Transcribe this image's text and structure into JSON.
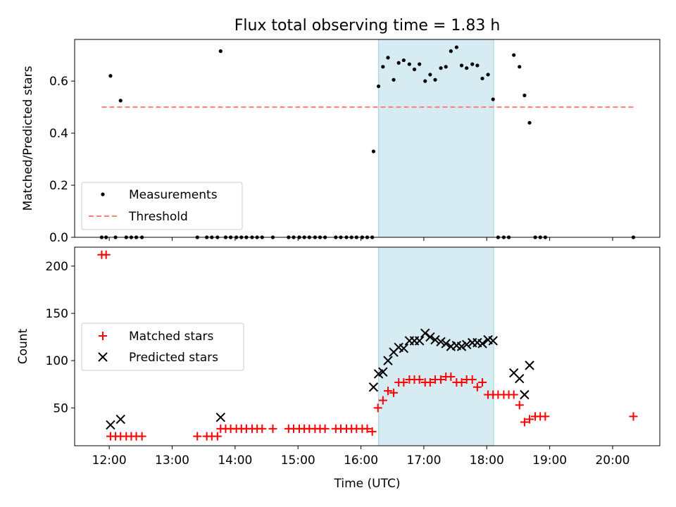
{
  "chart_data": [
    {
      "type": "scatter",
      "title": "Flux total observing time = 1.83 h",
      "xlabel": "",
      "ylabel": "Matched/Predicted stars",
      "xlim": [
        11.45,
        20.75
      ],
      "ylim": [
        0,
        0.76
      ],
      "y_ticks": [
        0.0,
        0.2,
        0.4,
        0.6
      ],
      "y_tick_labels": [
        "0.0",
        "0.2",
        "0.4",
        "0.6"
      ],
      "highlight_span": {
        "x0": 16.28,
        "x1": 18.11,
        "color": "#add8e6"
      },
      "legend": {
        "position": "lower-left",
        "entries": [
          "Measurements",
          "Threshold"
        ]
      },
      "series": [
        {
          "name": "Measurements",
          "marker": "dot",
          "color": "#000000",
          "x": [
            11.88,
            11.95,
            12.02,
            12.1,
            12.18,
            12.27,
            12.35,
            12.43,
            12.52,
            13.4,
            13.55,
            13.63,
            13.72,
            13.77,
            13.85,
            13.93,
            14.02,
            14.1,
            14.18,
            14.27,
            14.35,
            14.43,
            14.6,
            14.85,
            14.93,
            15.02,
            15.1,
            15.18,
            15.27,
            15.35,
            15.43,
            15.6,
            15.68,
            15.77,
            15.85,
            15.93,
            16.02,
            16.1,
            16.02,
            16.18,
            16.2,
            16.28,
            16.35,
            16.43,
            16.52,
            16.6,
            16.68,
            16.77,
            16.85,
            16.93,
            17.02,
            17.1,
            17.18,
            17.27,
            17.35,
            17.43,
            17.52,
            17.6,
            17.68,
            17.77,
            17.85,
            17.93,
            18.02,
            18.1,
            18.18,
            18.27,
            18.35,
            18.43,
            18.52,
            18.6,
            18.68,
            18.77,
            18.85,
            18.93,
            20.33
          ],
          "y": [
            0,
            0,
            0.62,
            0,
            0.525,
            0,
            0,
            0,
            0,
            0,
            0,
            0,
            0,
            0.715,
            0,
            0,
            0,
            0,
            0,
            0,
            0,
            0,
            0,
            0,
            0,
            0,
            0,
            0,
            0,
            0,
            0,
            0,
            0,
            0,
            0,
            0,
            0,
            0,
            0,
            0,
            0.33,
            0.58,
            0.655,
            0.69,
            0.605,
            0.67,
            0.68,
            0.665,
            0.645,
            0.665,
            0.6,
            0.625,
            0.605,
            0.65,
            0.655,
            0.715,
            0.73,
            0.66,
            0.65,
            0.665,
            0.66,
            0.61,
            0.625,
            0.53,
            0,
            0,
            0,
            0.7,
            0.655,
            0.545,
            0.44,
            0,
            0,
            0,
            0
          ]
        },
        {
          "name": "Threshold",
          "marker": "dashed-line",
          "color": "#ff7f7f",
          "x": [
            11.88,
            20.33
          ],
          "y": [
            0.5,
            0.5
          ]
        }
      ]
    },
    {
      "type": "scatter",
      "title": "",
      "xlabel": "Time (UTC)",
      "ylabel": "Count",
      "xlim": [
        11.45,
        20.75
      ],
      "ylim": [
        10,
        220
      ],
      "y_ticks": [
        50,
        100,
        150,
        200
      ],
      "y_tick_labels": [
        "50",
        "100",
        "150",
        "200"
      ],
      "x_ticks": [
        12,
        13,
        14,
        15,
        16,
        17,
        18,
        19,
        20
      ],
      "x_tick_labels": [
        "12:00",
        "13:00",
        "14:00",
        "15:00",
        "16:00",
        "17:00",
        "18:00",
        "19:00",
        "20:00"
      ],
      "highlight_span": {
        "x0": 16.28,
        "x1": 18.11,
        "color": "#add8e6"
      },
      "legend": {
        "position": "center-left",
        "entries": [
          "Matched stars",
          "Predicted stars"
        ]
      },
      "series": [
        {
          "name": "Matched stars",
          "marker": "plus",
          "color": "#ff0000",
          "x": [
            11.88,
            11.95,
            12.02,
            12.1,
            12.18,
            12.27,
            12.35,
            12.43,
            12.52,
            13.4,
            13.55,
            13.63,
            13.72,
            13.77,
            13.85,
            13.93,
            14.02,
            14.1,
            14.18,
            14.27,
            14.35,
            14.43,
            14.6,
            14.85,
            14.93,
            15.02,
            15.1,
            15.18,
            15.27,
            15.35,
            15.43,
            15.6,
            15.68,
            15.77,
            15.85,
            15.93,
            16.02,
            16.1,
            16.18,
            16.27,
            16.35,
            16.43,
            16.52,
            16.6,
            16.68,
            16.77,
            16.85,
            16.93,
            17.02,
            17.1,
            17.18,
            17.27,
            17.35,
            17.43,
            17.52,
            17.6,
            17.68,
            17.77,
            17.85,
            17.93,
            18.02,
            18.1,
            18.18,
            18.27,
            18.35,
            18.43,
            18.52,
            18.6,
            18.68,
            18.77,
            18.85,
            18.93,
            20.33
          ],
          "y": [
            212,
            212,
            20,
            20,
            20,
            20,
            20,
            20,
            20,
            20,
            20,
            20,
            20,
            28,
            28,
            28,
            28,
            28,
            28,
            28,
            28,
            28,
            28,
            28,
            28,
            28,
            28,
            28,
            28,
            28,
            28,
            28,
            28,
            28,
            28,
            28,
            28,
            28,
            25,
            50,
            58,
            68,
            66,
            77,
            77,
            80,
            80,
            80,
            77,
            77,
            80,
            80,
            83,
            83,
            77,
            77,
            80,
            80,
            72,
            77,
            64,
            64,
            64,
            64,
            64,
            64,
            53,
            35,
            38,
            41,
            41,
            41,
            41
          ]
        },
        {
          "name": "Predicted stars",
          "marker": "x",
          "color": "#000000",
          "x": [
            12.02,
            12.18,
            13.77,
            16.2,
            16.28,
            16.35,
            16.43,
            16.52,
            16.6,
            16.68,
            16.77,
            16.85,
            16.93,
            17.02,
            17.1,
            17.18,
            17.27,
            17.35,
            17.43,
            17.52,
            17.6,
            17.68,
            17.77,
            17.85,
            17.93,
            18.02,
            18.1,
            18.43,
            18.52,
            18.6,
            18.68
          ],
          "y": [
            32,
            38,
            40,
            72,
            86,
            88,
            100,
            109,
            114,
            113,
            121,
            121,
            121,
            129,
            125,
            122,
            120,
            118,
            115,
            116,
            115,
            117,
            119,
            119,
            118,
            122,
            121,
            87,
            81,
            64,
            95
          ]
        }
      ]
    }
  ]
}
